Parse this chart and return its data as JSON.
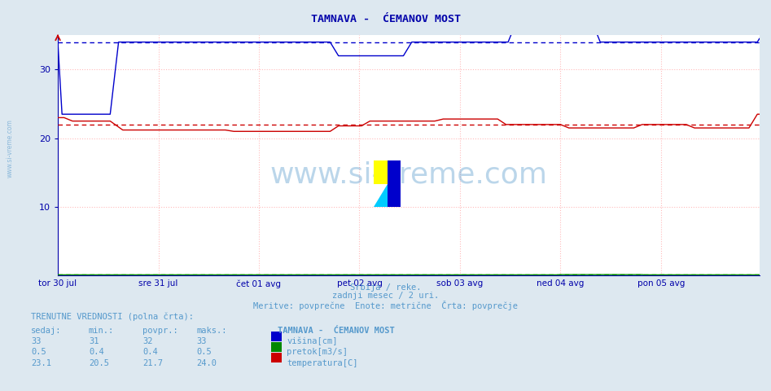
{
  "title": "TAMNAVA -  ĆEMANOV MOST",
  "subtitle1": "Srbija / reke.",
  "subtitle2": "zadnji mesec / 2 uri.",
  "subtitle3": "Meritve: povprečne  Enote: metrične  Črta: povprečje",
  "ylim": [
    0,
    35
  ],
  "yticks": [
    10,
    20,
    30
  ],
  "bg_color": "#dde8f0",
  "plot_bg_color": "#ffffff",
  "grid_color": "#ffbbbb",
  "title_color": "#0000aa",
  "axis_color": "#0000aa",
  "watermark_color": "#5599cc",
  "n_points": 336,
  "x_tick_labels": [
    "tor 30 jul",
    "sre 31 jul",
    "čet 01 avg",
    "pet 02 avg",
    "sob 03 avg",
    "ned 04 avg",
    "pon 05 avg"
  ],
  "x_tick_positions": [
    0,
    48,
    96,
    144,
    192,
    240,
    288
  ],
  "visina_color": "#0000cc",
  "pretok_color": "#008800",
  "temp_color": "#cc0000",
  "current_label": "TRENUTNE VREDNOSTI (polna črta):",
  "col_headers": [
    "sedaj:",
    "min.:",
    "povpr.:",
    "maks.:"
  ],
  "row_labels": [
    "višina[cm]",
    "pretok[m3/s]",
    "temperatura[C]"
  ],
  "station_label": "TAMNAVA -  ĆEMANOV MOST",
  "values": {
    "visina": {
      "sedaj": 33,
      "min": 31,
      "povpr": 32,
      "maks": 33
    },
    "pretok": {
      "sedaj": 0.5,
      "min": 0.4,
      "povpr": 0.4,
      "maks": 0.5
    },
    "temp": {
      "sedaj": 23.1,
      "min": 20.5,
      "povpr": 21.7,
      "maks": 24.0
    }
  },
  "visina_avg_value": 34.0,
  "pretok_avg_value": 0.12,
  "temp_avg_value": 22.0
}
